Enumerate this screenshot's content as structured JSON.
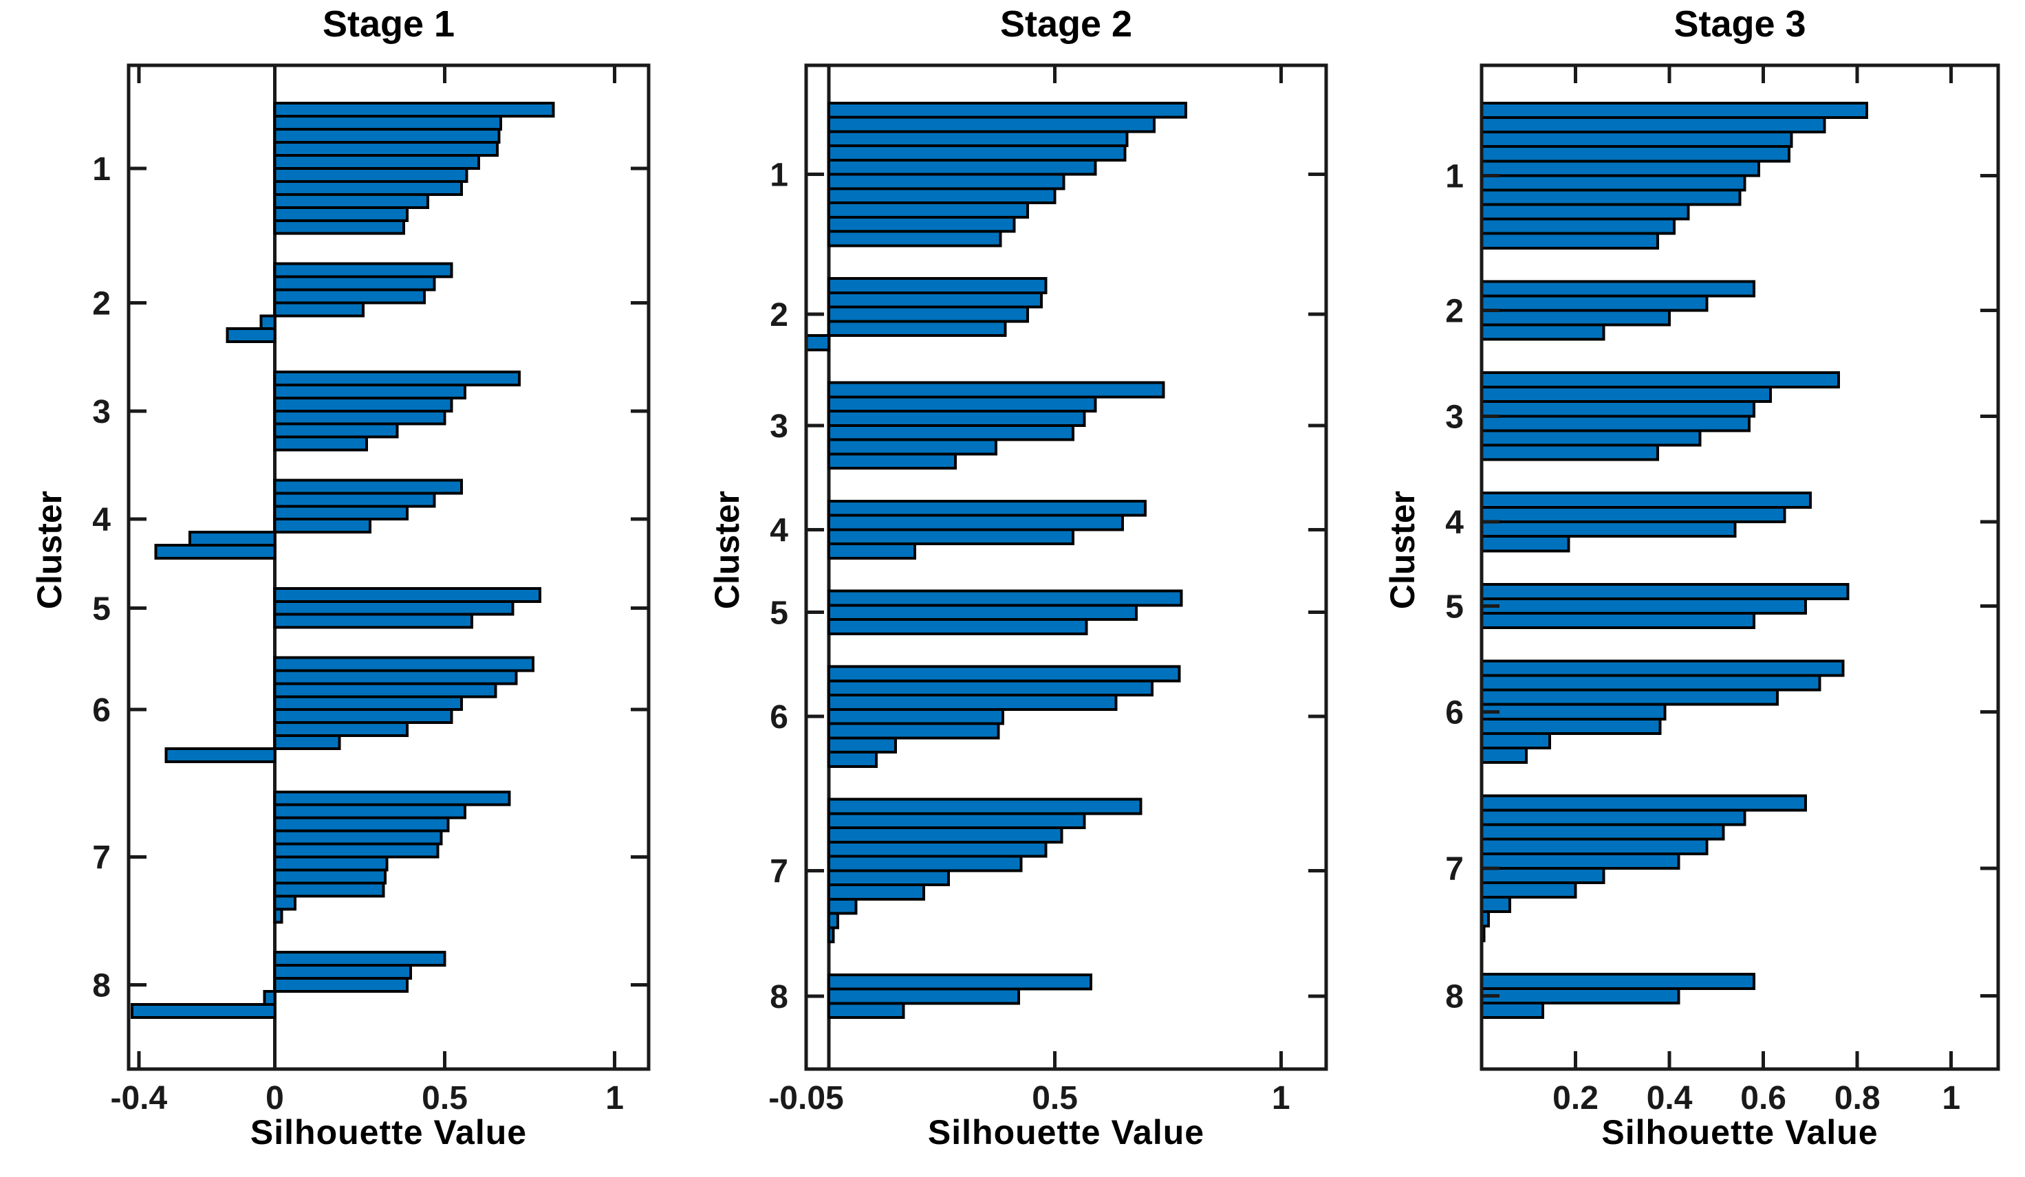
{
  "figure": {
    "background": "#ffffff"
  },
  "chart_data": [
    {
      "type": "bar",
      "orientation": "horizontal",
      "title": "Stage 1",
      "xlabel": "Silhouette Value",
      "ylabel": "Cluster",
      "xlim": [
        -0.43,
        1.1
      ],
      "grid": false,
      "zero_line": true,
      "bar_color": "#0072BD",
      "bar_edge_color": "#000000",
      "axis_color": "#1a1a1a",
      "xticks": [
        {
          "v": -0.4,
          "label": "-0.4"
        },
        {
          "v": 0,
          "label": "0"
        },
        {
          "v": 0.5,
          "label": "0.5"
        },
        {
          "v": 1,
          "label": "1"
        }
      ],
      "clusters": [
        {
          "label": "1",
          "values": [
            0.82,
            0.665,
            0.66,
            0.655,
            0.6,
            0.565,
            0.55,
            0.45,
            0.39,
            0.38
          ]
        },
        {
          "label": "2",
          "values": [
            0.52,
            0.47,
            0.44,
            0.26,
            -0.04,
            -0.14
          ]
        },
        {
          "label": "3",
          "values": [
            0.72,
            0.56,
            0.52,
            0.5,
            0.36,
            0.27
          ]
        },
        {
          "label": "4",
          "values": [
            0.55,
            0.47,
            0.39,
            0.28,
            -0.25,
            -0.35
          ]
        },
        {
          "label": "5",
          "values": [
            0.78,
            0.7,
            0.58
          ]
        },
        {
          "label": "6",
          "values": [
            0.76,
            0.71,
            0.65,
            0.55,
            0.52,
            0.39,
            0.19,
            -0.32
          ]
        },
        {
          "label": "7",
          "values": [
            0.69,
            0.56,
            0.51,
            0.49,
            0.48,
            0.33,
            0.325,
            0.32,
            0.06,
            0.02
          ]
        },
        {
          "label": "8",
          "values": [
            0.5,
            0.4,
            0.39,
            -0.03,
            -0.42
          ]
        }
      ]
    },
    {
      "type": "bar",
      "orientation": "horizontal",
      "title": "Stage 2",
      "xlabel": "Silhouette Value",
      "ylabel": "Cluster",
      "xlim": [
        -0.05,
        1.1
      ],
      "grid": false,
      "zero_line": true,
      "bar_color": "#0072BD",
      "bar_edge_color": "#000000",
      "axis_color": "#1a1a1a",
      "xticks": [
        {
          "v": -0.05,
          "label": "-0.05"
        },
        {
          "v": 0.5,
          "label": "0.5"
        },
        {
          "v": 1,
          "label": "1"
        }
      ],
      "clusters": [
        {
          "label": "1",
          "values": [
            0.79,
            0.72,
            0.66,
            0.655,
            0.59,
            0.52,
            0.5,
            0.44,
            0.41,
            0.38
          ]
        },
        {
          "label": "2",
          "values": [
            0.48,
            0.47,
            0.44,
            0.39,
            -0.05
          ]
        },
        {
          "label": "3",
          "values": [
            0.74,
            0.59,
            0.565,
            0.54,
            0.37,
            0.28
          ]
        },
        {
          "label": "4",
          "values": [
            0.7,
            0.65,
            0.54,
            0.19
          ]
        },
        {
          "label": "5",
          "values": [
            0.78,
            0.68,
            0.57
          ]
        },
        {
          "label": "6",
          "values": [
            0.775,
            0.715,
            0.635,
            0.385,
            0.375,
            0.148,
            0.105
          ]
        },
        {
          "label": "7",
          "values": [
            0.69,
            0.565,
            0.515,
            0.48,
            0.425,
            0.265,
            0.21,
            0.06,
            0.02,
            0.01
          ]
        },
        {
          "label": "8",
          "values": [
            0.58,
            0.42,
            0.165
          ]
        }
      ]
    },
    {
      "type": "bar",
      "orientation": "horizontal",
      "title": "Stage 3",
      "xlabel": "Silhouette Value",
      "ylabel": "Cluster",
      "xlim": [
        0,
        1.1
      ],
      "grid": false,
      "zero_line": false,
      "bar_color": "#0072BD",
      "bar_edge_color": "#000000",
      "axis_color": "#1a1a1a",
      "xticks": [
        {
          "v": 0.2,
          "label": "0.2"
        },
        {
          "v": 0.4,
          "label": "0.4"
        },
        {
          "v": 0.6,
          "label": "0.6"
        },
        {
          "v": 0.8,
          "label": "0.8"
        },
        {
          "v": 1,
          "label": "1"
        }
      ],
      "clusters": [
        {
          "label": "1",
          "values": [
            0.82,
            0.73,
            0.66,
            0.655,
            0.59,
            0.56,
            0.55,
            0.44,
            0.41,
            0.375
          ]
        },
        {
          "label": "2",
          "values": [
            0.58,
            0.48,
            0.4,
            0.26
          ]
        },
        {
          "label": "3",
          "values": [
            0.76,
            0.615,
            0.58,
            0.57,
            0.465,
            0.375
          ]
        },
        {
          "label": "4",
          "values": [
            0.7,
            0.645,
            0.54,
            0.185
          ]
        },
        {
          "label": "5",
          "values": [
            0.78,
            0.69,
            0.58
          ]
        },
        {
          "label": "6",
          "values": [
            0.77,
            0.72,
            0.63,
            0.39,
            0.38,
            0.145,
            0.095
          ]
        },
        {
          "label": "7",
          "values": [
            0.69,
            0.56,
            0.515,
            0.48,
            0.42,
            0.26,
            0.2,
            0.06,
            0.015,
            0.005
          ]
        },
        {
          "label": "8",
          "values": [
            0.58,
            0.42,
            0.13
          ]
        }
      ]
    }
  ]
}
